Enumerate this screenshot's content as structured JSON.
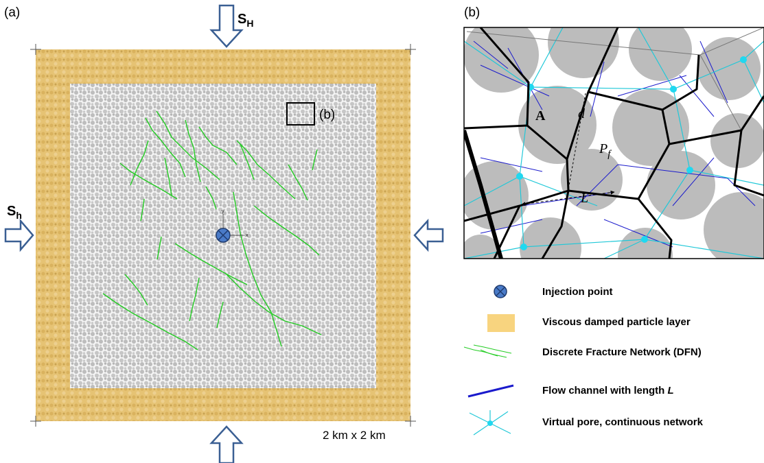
{
  "panel_a": {
    "label": "(a)",
    "stress_vertical": {
      "symbol": "S",
      "subscript": "H"
    },
    "stress_horizontal": {
      "symbol": "S",
      "subscript": "h"
    },
    "inset_label": "(b)",
    "axis_y": "y",
    "axis_x": "x",
    "scale": "2 km x 2 km"
  },
  "panel_b": {
    "label": "(b)",
    "label_a": "A",
    "label_d": "d",
    "label_p": "P",
    "label_p_sub": "f",
    "label_l": "L"
  },
  "legend": [
    {
      "text": "Injection point"
    },
    {
      "text": "Viscous damped particle layer"
    },
    {
      "text": "Discrete Fracture Network (DFN)"
    },
    {
      "text": "Flow channel with length ",
      "emphasis": "L"
    },
    {
      "text": "Virtual pore, continuous network"
    }
  ]
}
